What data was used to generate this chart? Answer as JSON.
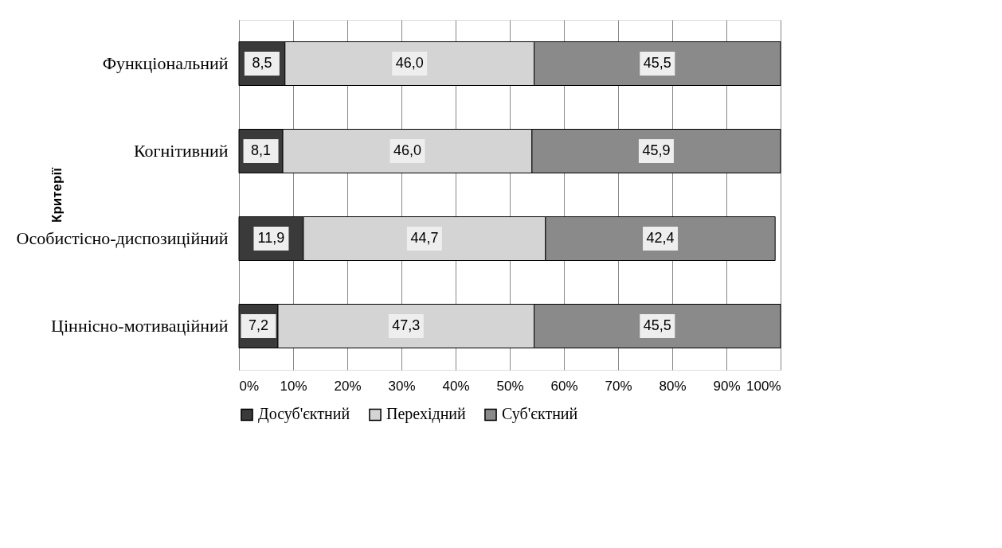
{
  "chart_data": {
    "type": "bar",
    "orientation": "horizontal",
    "stacked": true,
    "ylabel": "Критерії",
    "categories": [
      "Функціональний",
      "Когнітивний",
      "Особистісно-диспозиційний",
      "Ціннісно-мотиваційний"
    ],
    "series": [
      {
        "name": "Досуб'єктний",
        "color": "#3a3a3a",
        "values": [
          8.5,
          8.1,
          11.9,
          7.2
        ],
        "value_labels": [
          "8,5",
          "8,1",
          "11,9",
          "7,2"
        ]
      },
      {
        "name": "Перехідний",
        "color": "#d4d4d4",
        "values": [
          46.0,
          46.0,
          44.7,
          47.3
        ],
        "value_labels": [
          "46,0",
          "46,0",
          "44,7",
          "47,3"
        ]
      },
      {
        "name": "Суб'єктний",
        "color": "#8a8a8a",
        "values": [
          45.5,
          45.9,
          42.4,
          45.5
        ],
        "value_labels": [
          "45,5",
          "45,9",
          "42,4",
          "45,5"
        ]
      }
    ],
    "xlim": [
      0,
      100
    ],
    "xticks": [
      {
        "value": 0,
        "label": "0%"
      },
      {
        "value": 10,
        "label": "10%"
      },
      {
        "value": 20,
        "label": "20%"
      },
      {
        "value": 30,
        "label": "30%"
      },
      {
        "value": 40,
        "label": "40%"
      },
      {
        "value": 50,
        "label": "50%"
      },
      {
        "value": 60,
        "label": "60%"
      },
      {
        "value": 70,
        "label": "70%"
      },
      {
        "value": 80,
        "label": "80%"
      },
      {
        "value": 90,
        "label": "90%"
      },
      {
        "value": 100,
        "label": "100%"
      }
    ],
    "grid": "x",
    "legend": "bottom"
  }
}
